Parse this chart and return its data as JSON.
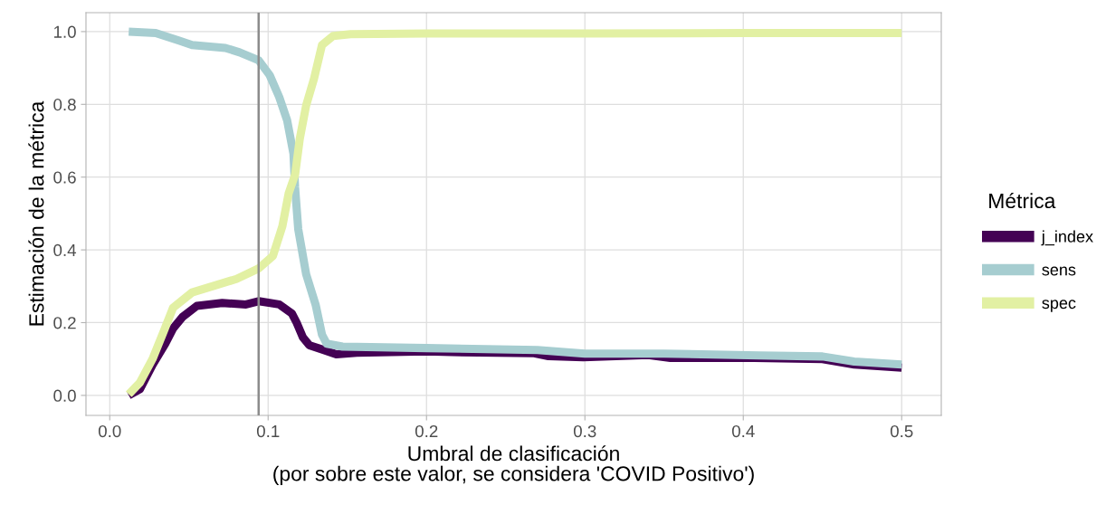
{
  "chart_data": {
    "type": "line",
    "xlabel": "Umbral de clasificación\n(por sobre este valor, se considera 'COVID Positivo')",
    "ylabel": "Estimación de la métrica",
    "legend_title": "Métrica",
    "legend": "right",
    "grid": true,
    "line_style": "solid",
    "xlim": [
      -0.015,
      0.525
    ],
    "ylim": [
      -0.055,
      1.052
    ],
    "xticks": [
      {
        "value": 0,
        "label": "0.0"
      },
      0.1,
      0.2,
      0.3,
      0.4,
      0.5
    ],
    "yticks": [
      {
        "value": 0,
        "label": "0.0"
      },
      0.2,
      0.4,
      0.6,
      0.8,
      {
        "value": 1,
        "label": "1.0"
      }
    ],
    "ref_lines": [
      {
        "axis": "x",
        "value": 0.094,
        "color": "#8c8c8c"
      }
    ],
    "series": [
      {
        "name": "j_index",
        "color": "#440154",
        "x": [
          0.012,
          0.019,
          0.027,
          0.035,
          0.04,
          0.046,
          0.055,
          0.071,
          0.086,
          0.094,
          0.107,
          0.115,
          0.118,
          0.122,
          0.126,
          0.135,
          0.143,
          0.156,
          0.2,
          0.216,
          0.268,
          0.277,
          0.299,
          0.34,
          0.354,
          0.407,
          0.45,
          0.47,
          0.5
        ],
        "values": [
          0.0,
          0.017,
          0.084,
          0.142,
          0.184,
          0.216,
          0.246,
          0.254,
          0.25,
          0.259,
          0.25,
          0.225,
          0.2,
          0.159,
          0.138,
          0.125,
          0.113,
          0.117,
          0.121,
          0.119,
          0.116,
          0.108,
          0.105,
          0.111,
          0.103,
          0.103,
          0.1,
          0.085,
          0.076
        ]
      },
      {
        "name": "sens",
        "color": "#a6cdd0",
        "x": [
          0.012,
          0.029,
          0.044,
          0.052,
          0.073,
          0.082,
          0.094,
          0.101,
          0.107,
          0.112,
          0.116,
          0.117,
          0.119,
          0.124,
          0.13,
          0.134,
          0.137,
          0.147,
          0.2,
          0.27,
          0.3,
          0.35,
          0.41,
          0.45,
          0.47,
          0.5
        ],
        "values": [
          1.0,
          0.996,
          0.975,
          0.963,
          0.955,
          0.943,
          0.921,
          0.88,
          0.82,
          0.756,
          0.664,
          0.573,
          0.457,
          0.333,
          0.249,
          0.167,
          0.142,
          0.134,
          0.13,
          0.125,
          0.115,
          0.115,
          0.11,
          0.107,
          0.093,
          0.085
        ]
      },
      {
        "name": "spec",
        "color": "#e2f0a3",
        "x": [
          0.012,
          0.019,
          0.027,
          0.034,
          0.04,
          0.052,
          0.067,
          0.08,
          0.094,
          0.103,
          0.109,
          0.113,
          0.117,
          0.12,
          0.124,
          0.129,
          0.134,
          0.141,
          0.152,
          0.2,
          0.3,
          0.4,
          0.5
        ],
        "values": [
          0.003,
          0.035,
          0.1,
          0.175,
          0.241,
          0.283,
          0.303,
          0.32,
          0.349,
          0.383,
          0.465,
          0.556,
          0.606,
          0.706,
          0.797,
          0.871,
          0.963,
          0.988,
          0.993,
          0.995,
          0.995,
          0.996,
          0.996
        ]
      }
    ]
  }
}
